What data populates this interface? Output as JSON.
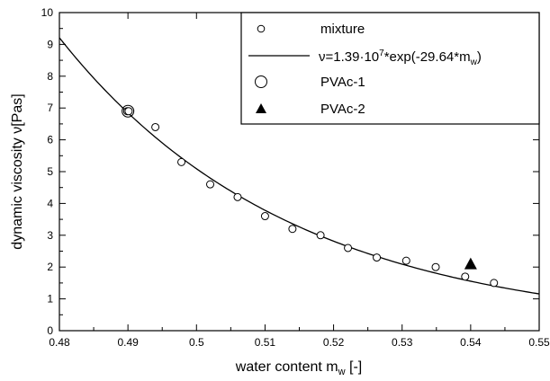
{
  "chart_data": {
    "type": "scatter",
    "xlabel": "water content m",
    "xlabel_sub": "w",
    "xlabel_suffix": " [-]",
    "ylabel": "dynamic viscosity ν[Pas]",
    "xlim": [
      0.48,
      0.55
    ],
    "ylim": [
      0,
      10
    ],
    "x_ticks": [
      "0.48",
      "0.49",
      "0.5",
      "0.51",
      "0.52",
      "0.53",
      "0.54",
      "0.55"
    ],
    "y_ticks": [
      "0",
      "1",
      "2",
      "3",
      "4",
      "5",
      "6",
      "7",
      "8",
      "9",
      "10"
    ],
    "grid": false,
    "legend_position": "top-right",
    "series": [
      {
        "name": "mixture",
        "marker": "open-circle-small",
        "x": [
          0.4899,
          0.4901,
          0.494,
          0.4978,
          0.502,
          0.506,
          0.51,
          0.514,
          0.5181,
          0.5221,
          0.5263,
          0.5306,
          0.5349,
          0.5392,
          0.5434
        ],
        "y": [
          6.9,
          6.9,
          6.4,
          5.3,
          4.6,
          4.2,
          3.6,
          3.2,
          3.0,
          2.6,
          2.3,
          2.2,
          2.0,
          1.7,
          1.5
        ]
      },
      {
        "name": "PVAc-1",
        "marker": "open-circle-large",
        "x": [
          0.49
        ],
        "y": [
          6.9
        ]
      },
      {
        "name": "PVAc-2",
        "marker": "filled-triangle",
        "x": [
          0.54
        ],
        "y": [
          2.1
        ]
      }
    ],
    "fit": {
      "legend": "ν=1.39·10",
      "legend_exp": "7",
      "legend_tail": "*exp(-29.64*m",
      "legend_sub": "w",
      "legend_close": ")",
      "a": 13900000,
      "b": -29.64
    }
  }
}
